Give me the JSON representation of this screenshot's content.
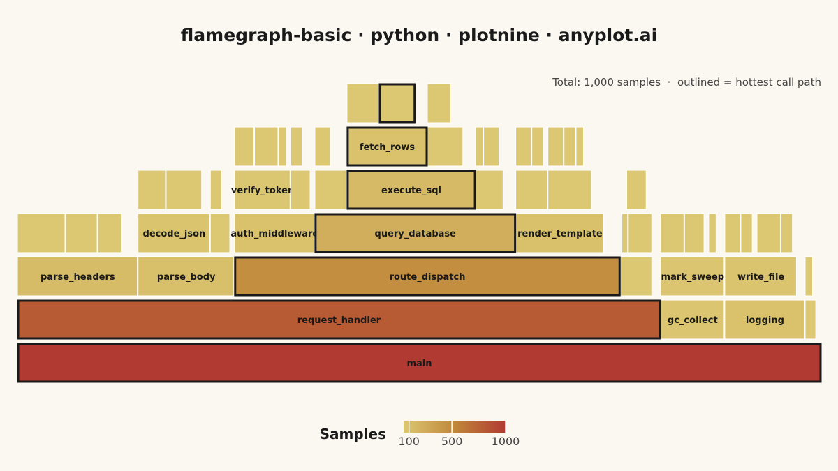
{
  "chart_data": {
    "type": "flamegraph",
    "title": "flamegraph-basic · python · plotnine · anyplot.ai",
    "annotation": "Total: 1,000 samples  ·  outlined = hottest call path",
    "total_samples": 1000,
    "legend": {
      "title": "Samples",
      "ticks": [
        100,
        500,
        1000
      ],
      "range": [
        1,
        1000
      ],
      "colors": [
        "#DCC872",
        "#C0873A",
        "#B13A32"
      ]
    },
    "colors": {
      "background": "#FAF8F1",
      "hot_path_outline": "#1A1A1A",
      "frame_separator": "#FFFFFF"
    },
    "frames": [
      {
        "name": "main",
        "depth": 0,
        "start": 0,
        "samples": 1000,
        "hot": true,
        "show_label": true
      },
      {
        "name": "request_handler",
        "depth": 1,
        "start": 0,
        "samples": 800,
        "hot": true,
        "show_label": true
      },
      {
        "name": "gc_collect",
        "depth": 1,
        "start": 800,
        "samples": 80,
        "hot": false,
        "show_label": true
      },
      {
        "name": "logging",
        "depth": 1,
        "start": 880,
        "samples": 100,
        "hot": false,
        "show_label": true
      },
      {
        "name": "",
        "depth": 1,
        "start": 980,
        "samples": 14,
        "hot": false,
        "show_label": false
      },
      {
        "name": "parse_headers",
        "depth": 2,
        "start": 0,
        "samples": 150,
        "hot": false,
        "show_label": true
      },
      {
        "name": "parse_body",
        "depth": 2,
        "start": 150,
        "samples": 120,
        "hot": false,
        "show_label": true
      },
      {
        "name": "route_dispatch",
        "depth": 2,
        "start": 270,
        "samples": 480,
        "hot": true,
        "show_label": true
      },
      {
        "name": "",
        "depth": 2,
        "start": 750,
        "samples": 40,
        "hot": false,
        "show_label": false
      },
      {
        "name": "mark_sweep",
        "depth": 2,
        "start": 800,
        "samples": 80,
        "hot": false,
        "show_label": true
      },
      {
        "name": "write_file",
        "depth": 2,
        "start": 880,
        "samples": 90,
        "hot": false,
        "show_label": true
      },
      {
        "name": "",
        "depth": 2,
        "start": 980,
        "samples": 10,
        "hot": false,
        "show_label": false
      },
      {
        "name": "",
        "depth": 3,
        "start": 0,
        "samples": 60,
        "hot": false,
        "show_label": false
      },
      {
        "name": "",
        "depth": 3,
        "start": 60,
        "samples": 40,
        "hot": false,
        "show_label": false
      },
      {
        "name": "",
        "depth": 3,
        "start": 100,
        "samples": 30,
        "hot": false,
        "show_label": false
      },
      {
        "name": "decode_json",
        "depth": 3,
        "start": 150,
        "samples": 90,
        "hot": false,
        "show_label": true
      },
      {
        "name": "",
        "depth": 3,
        "start": 240,
        "samples": 25,
        "hot": false,
        "show_label": false
      },
      {
        "name": "auth_middleware",
        "depth": 3,
        "start": 270,
        "samples": 100,
        "hot": false,
        "show_label": true
      },
      {
        "name": "query_database",
        "depth": 3,
        "start": 370,
        "samples": 250,
        "hot": true,
        "show_label": true
      },
      {
        "name": "render_template",
        "depth": 3,
        "start": 620,
        "samples": 110,
        "hot": false,
        "show_label": true
      },
      {
        "name": "",
        "depth": 3,
        "start": 752,
        "samples": 8,
        "hot": false,
        "show_label": false
      },
      {
        "name": "",
        "depth": 3,
        "start": 760,
        "samples": 30,
        "hot": false,
        "show_label": false
      },
      {
        "name": "",
        "depth": 3,
        "start": 800,
        "samples": 30,
        "hot": false,
        "show_label": false
      },
      {
        "name": "",
        "depth": 3,
        "start": 830,
        "samples": 25,
        "hot": false,
        "show_label": false
      },
      {
        "name": "",
        "depth": 3,
        "start": 860,
        "samples": 10,
        "hot": false,
        "show_label": false
      },
      {
        "name": "",
        "depth": 3,
        "start": 880,
        "samples": 20,
        "hot": false,
        "show_label": false
      },
      {
        "name": "",
        "depth": 3,
        "start": 900,
        "samples": 15,
        "hot": false,
        "show_label": false
      },
      {
        "name": "",
        "depth": 3,
        "start": 920,
        "samples": 30,
        "hot": false,
        "show_label": false
      },
      {
        "name": "",
        "depth": 3,
        "start": 950,
        "samples": 15,
        "hot": false,
        "show_label": false
      },
      {
        "name": "",
        "depth": 4,
        "start": 150,
        "samples": 35,
        "hot": false,
        "show_label": false
      },
      {
        "name": "",
        "depth": 4,
        "start": 185,
        "samples": 45,
        "hot": false,
        "show_label": false
      },
      {
        "name": "",
        "depth": 4,
        "start": 240,
        "samples": 15,
        "hot": false,
        "show_label": false
      },
      {
        "name": "verify_token",
        "depth": 4,
        "start": 270,
        "samples": 70,
        "hot": false,
        "show_label": true
      },
      {
        "name": "",
        "depth": 4,
        "start": 340,
        "samples": 25,
        "hot": false,
        "show_label": false
      },
      {
        "name": "",
        "depth": 4,
        "start": 370,
        "samples": 40,
        "hot": false,
        "show_label": false
      },
      {
        "name": "execute_sql",
        "depth": 4,
        "start": 410,
        "samples": 160,
        "hot": true,
        "show_label": true
      },
      {
        "name": "",
        "depth": 4,
        "start": 570,
        "samples": 35,
        "hot": false,
        "show_label": false
      },
      {
        "name": "",
        "depth": 4,
        "start": 620,
        "samples": 40,
        "hot": false,
        "show_label": false
      },
      {
        "name": "",
        "depth": 4,
        "start": 660,
        "samples": 55,
        "hot": false,
        "show_label": false
      },
      {
        "name": "",
        "depth": 4,
        "start": 758,
        "samples": 25,
        "hot": false,
        "show_label": false
      },
      {
        "name": "",
        "depth": 5,
        "start": 270,
        "samples": 25,
        "hot": false,
        "show_label": false
      },
      {
        "name": "",
        "depth": 5,
        "start": 295,
        "samples": 30,
        "hot": false,
        "show_label": false
      },
      {
        "name": "",
        "depth": 5,
        "start": 325,
        "samples": 10,
        "hot": false,
        "show_label": false
      },
      {
        "name": "",
        "depth": 5,
        "start": 340,
        "samples": 15,
        "hot": false,
        "show_label": false
      },
      {
        "name": "",
        "depth": 5,
        "start": 370,
        "samples": 20,
        "hot": false,
        "show_label": false
      },
      {
        "name": "fetch_rows",
        "depth": 5,
        "start": 410,
        "samples": 100,
        "hot": true,
        "show_label": true
      },
      {
        "name": "",
        "depth": 5,
        "start": 510,
        "samples": 45,
        "hot": false,
        "show_label": false
      },
      {
        "name": "",
        "depth": 5,
        "start": 570,
        "samples": 10,
        "hot": false,
        "show_label": false
      },
      {
        "name": "",
        "depth": 5,
        "start": 580,
        "samples": 20,
        "hot": false,
        "show_label": false
      },
      {
        "name": "",
        "depth": 5,
        "start": 620,
        "samples": 20,
        "hot": false,
        "show_label": false
      },
      {
        "name": "",
        "depth": 5,
        "start": 640,
        "samples": 15,
        "hot": false,
        "show_label": false
      },
      {
        "name": "",
        "depth": 5,
        "start": 660,
        "samples": 20,
        "hot": false,
        "show_label": false
      },
      {
        "name": "",
        "depth": 5,
        "start": 680,
        "samples": 15,
        "hot": false,
        "show_label": false
      },
      {
        "name": "",
        "depth": 5,
        "start": 695,
        "samples": 10,
        "hot": false,
        "show_label": false
      },
      {
        "name": "",
        "depth": 6,
        "start": 410,
        "samples": 40,
        "hot": false,
        "show_label": false
      },
      {
        "name": "",
        "depth": 6,
        "start": 450,
        "samples": 45,
        "hot": true,
        "show_label": false
      },
      {
        "name": "",
        "depth": 6,
        "start": 510,
        "samples": 30,
        "hot": false,
        "show_label": false
      }
    ]
  }
}
